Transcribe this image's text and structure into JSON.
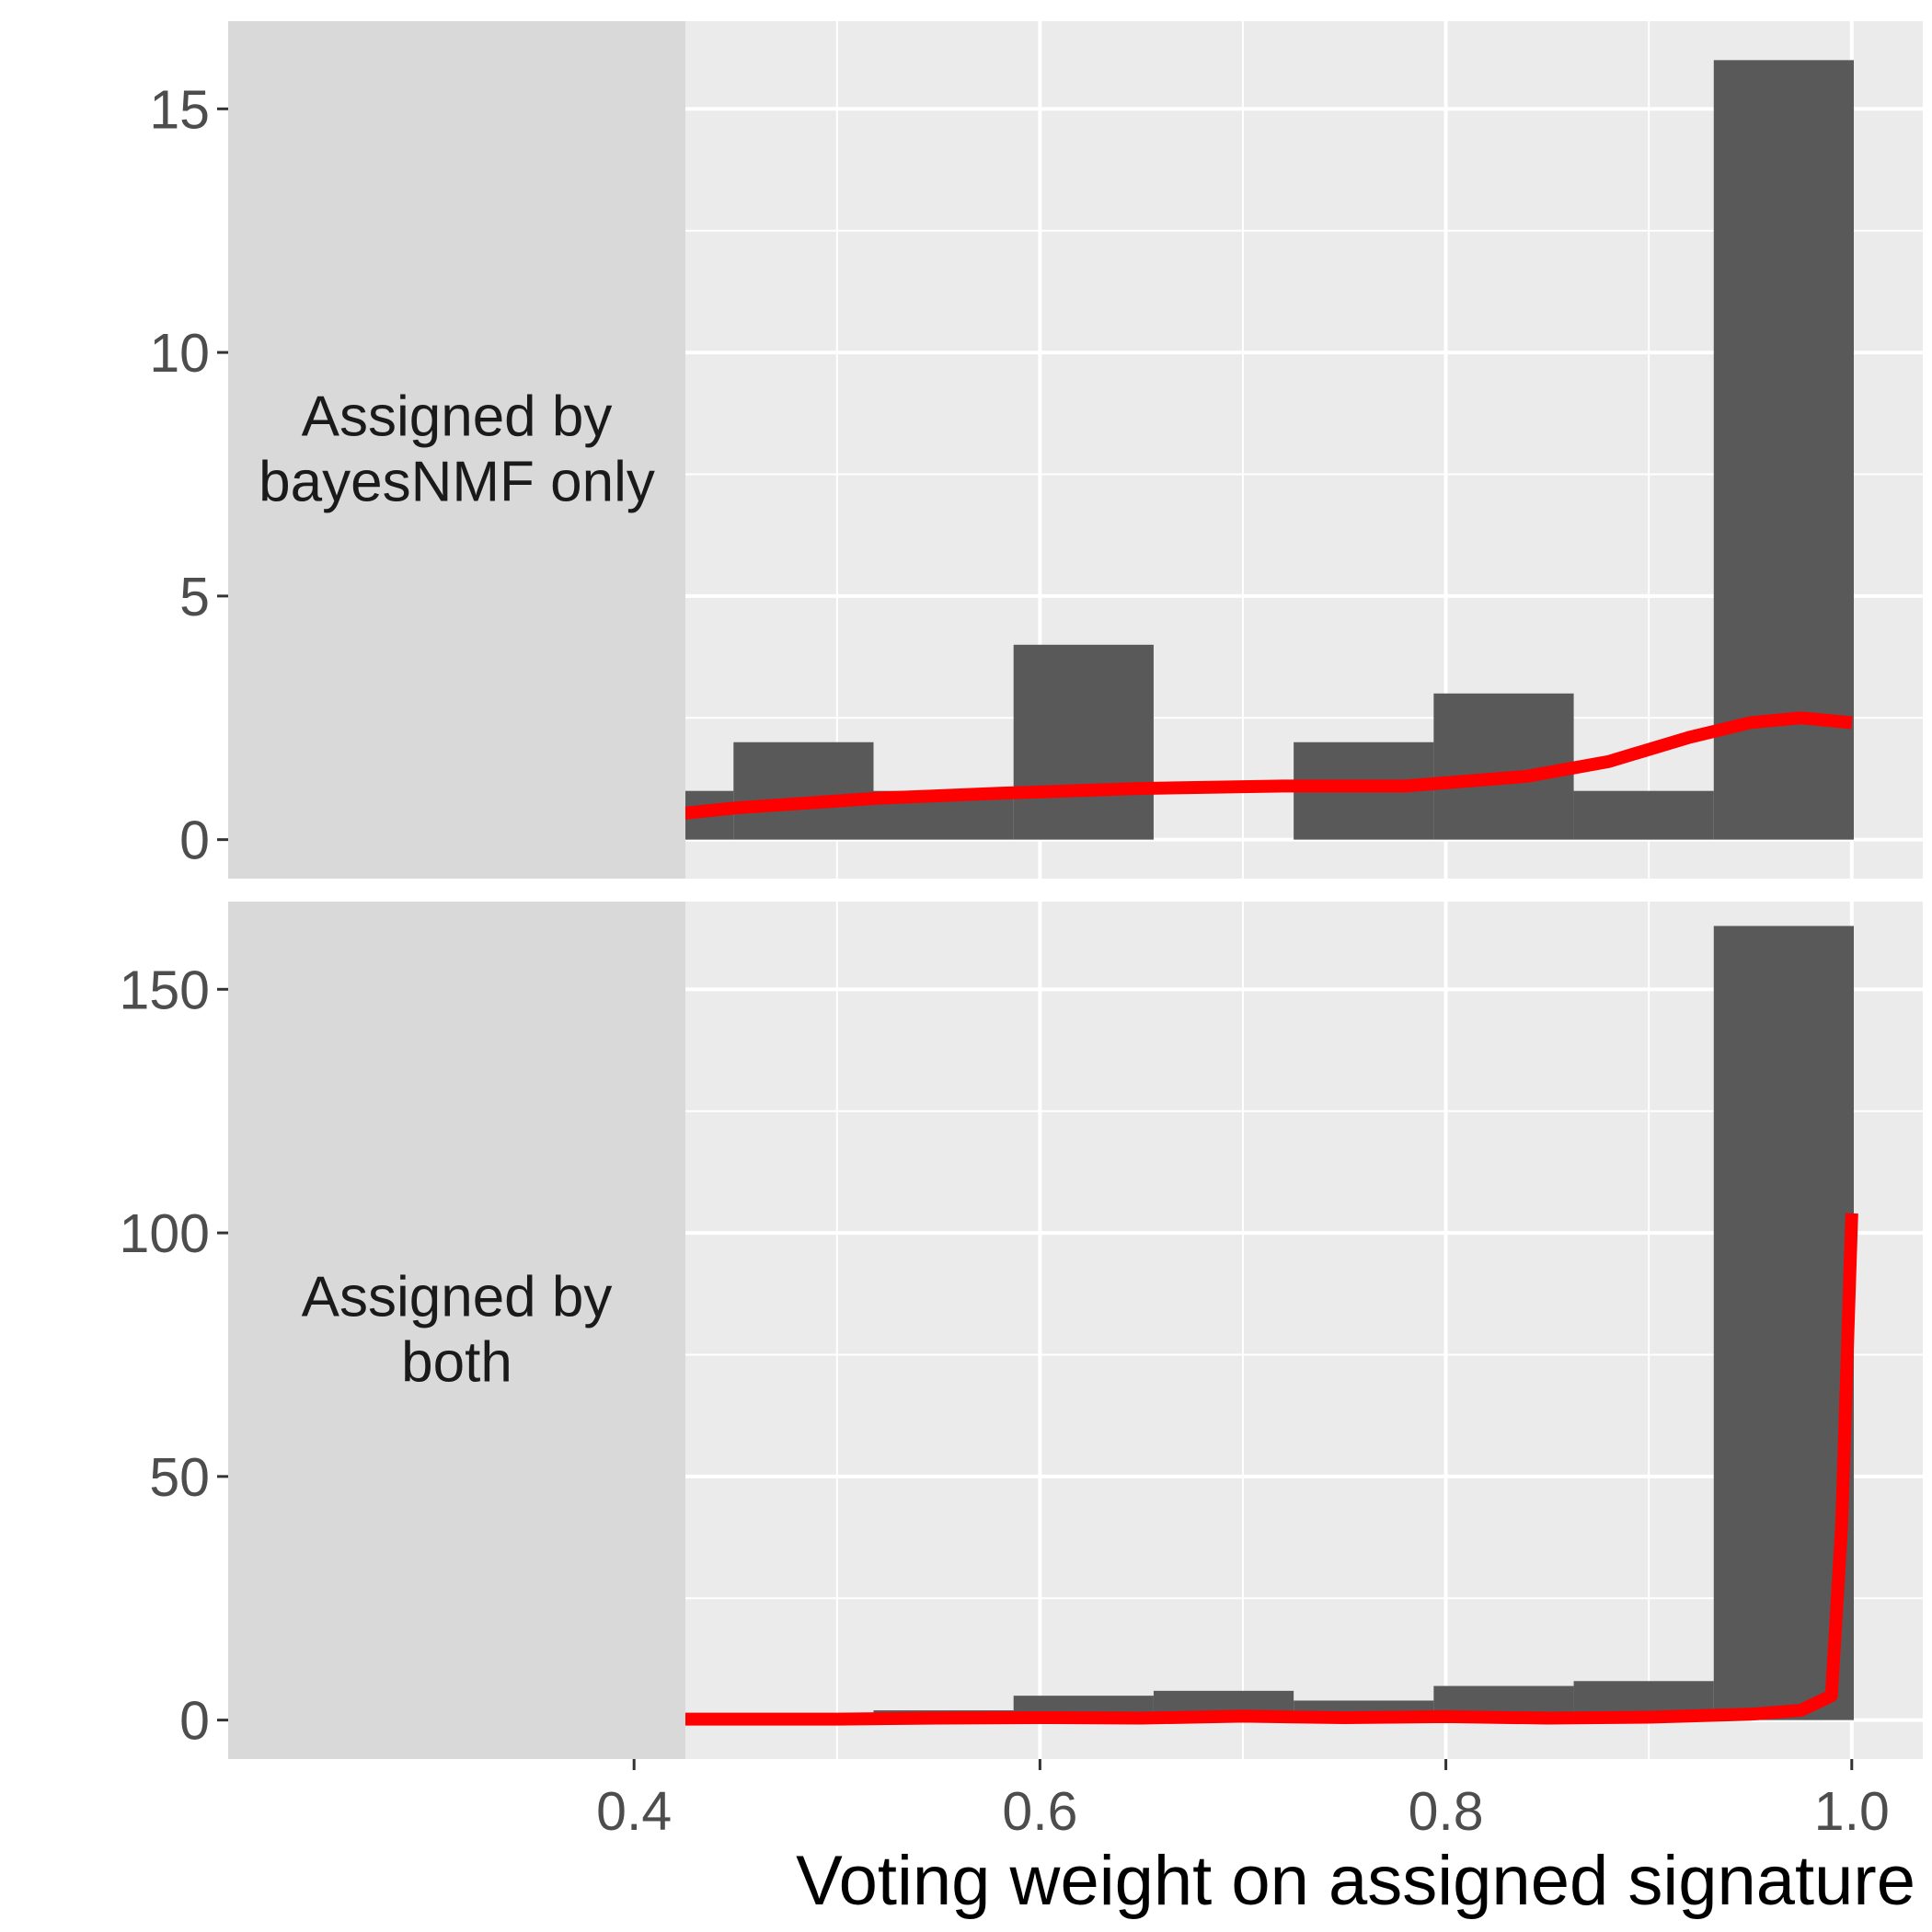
{
  "chart_data": {
    "type": "bar",
    "xlabel": "Voting weight on assigned signature",
    "ylabel": "",
    "x_ticks": [
      0.4,
      0.6,
      0.8,
      1.0
    ],
    "x_tick_labels": [
      "0.4",
      "0.6",
      "0.8",
      "1.0"
    ],
    "xlim": [
      0.2,
      1.035
    ],
    "grid": true,
    "colors": {
      "bar": "#595959",
      "density": "#ff0000",
      "panel": "#ebebeb",
      "strip": "#d9d9d9",
      "grid": "#ffffff"
    },
    "panels": [
      {
        "strip_lines": [
          "Assigned by",
          "bayesNMF only"
        ],
        "ylim": [
          -0.8,
          16.8
        ],
        "y_ticks": [
          0,
          5,
          10,
          15
        ],
        "y_tick_labels": [
          "0",
          "5",
          "10",
          "15"
        ],
        "bins": [
          {
            "x0": 0.38,
            "x1": 0.449,
            "count": 1
          },
          {
            "x0": 0.449,
            "x1": 0.518,
            "count": 2
          },
          {
            "x0": 0.518,
            "x1": 0.587,
            "count": 1
          },
          {
            "x0": 0.587,
            "x1": 0.656,
            "count": 4
          },
          {
            "x0": 0.656,
            "x1": 0.725,
            "count": 0
          },
          {
            "x0": 0.725,
            "x1": 0.794,
            "count": 2
          },
          {
            "x0": 0.794,
            "x1": 0.863,
            "count": 3
          },
          {
            "x0": 0.863,
            "x1": 0.932,
            "count": 1
          },
          {
            "x0": 0.932,
            "x1": 1.001,
            "count": 16
          }
        ],
        "density": {
          "x": [
            0.38,
            0.45,
            0.52,
            0.58,
            0.65,
            0.72,
            0.78,
            0.84,
            0.88,
            0.92,
            0.95,
            0.975,
            1.0
          ],
          "y": [
            0.35,
            0.65,
            0.85,
            0.95,
            1.05,
            1.1,
            1.1,
            1.3,
            1.6,
            2.1,
            2.4,
            2.5,
            2.4
          ]
        }
      },
      {
        "strip_lines": [
          "Assigned by",
          "both"
        ],
        "ylim": [
          -8,
          168
        ],
        "y_ticks": [
          0,
          50,
          100,
          150
        ],
        "y_tick_labels": [
          "0",
          "50",
          "100",
          "150"
        ],
        "bins": [
          {
            "x0": 0.311,
            "x1": 0.38,
            "count": 2
          },
          {
            "x0": 0.38,
            "x1": 0.449,
            "count": 1
          },
          {
            "x0": 0.449,
            "x1": 0.518,
            "count": 0
          },
          {
            "x0": 0.518,
            "x1": 0.587,
            "count": 2
          },
          {
            "x0": 0.587,
            "x1": 0.656,
            "count": 5
          },
          {
            "x0": 0.656,
            "x1": 0.725,
            "count": 6
          },
          {
            "x0": 0.725,
            "x1": 0.794,
            "count": 4
          },
          {
            "x0": 0.794,
            "x1": 0.863,
            "count": 7
          },
          {
            "x0": 0.863,
            "x1": 0.932,
            "count": 8
          },
          {
            "x0": 0.932,
            "x1": 1.001,
            "count": 163
          }
        ],
        "density": {
          "x": [
            0.38,
            0.4,
            0.5,
            0.55,
            0.6,
            0.65,
            0.7,
            0.75,
            0.8,
            0.85,
            0.9,
            0.95,
            0.975,
            0.99,
            0.995,
            1.0
          ],
          "y": [
            1,
            0.2,
            0.2,
            0.4,
            0.5,
            0.4,
            0.8,
            0.5,
            0.7,
            0.4,
            0.6,
            1.2,
            2,
            5,
            40,
            104
          ]
        }
      }
    ]
  }
}
